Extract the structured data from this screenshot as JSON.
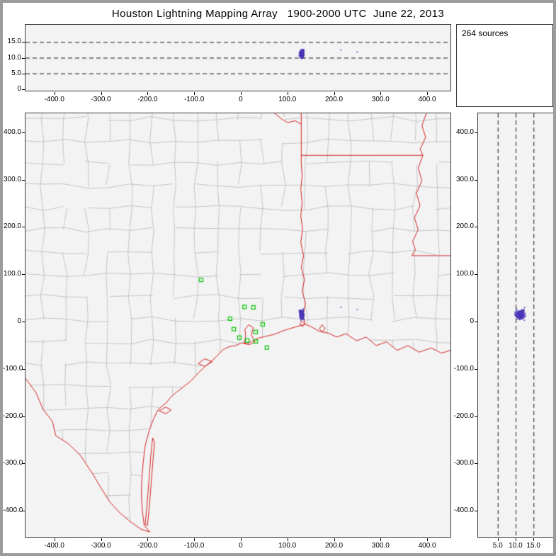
{
  "title": "Houston Lightning Mapping Array   1900-2000 UTC  June 22, 2013",
  "sources_panel": {
    "label": "264 sources"
  },
  "chart_data": {
    "type": "scatter",
    "description": "Lightning Mapping Array display: altitude vs east-west distance (top), plan-view map with county and state borders (center), altitude vs north-south distance (right)",
    "sources_total": 264,
    "source_cluster": {
      "count": 262,
      "x_east_km": {
        "center": 131,
        "spread": 7
      },
      "y_north_km": {
        "center": 15,
        "spread": 14
      },
      "alt_km": {
        "center": 11.3,
        "spread": 1.9,
        "min": 9.2,
        "max": 13.5
      }
    },
    "stray_sources": [
      {
        "x": 215,
        "y": 30,
        "alt": 12.5
      },
      {
        "x": 250,
        "y": 25,
        "alt": 11.8
      }
    ],
    "stations_xy_km": [
      [
        -85,
        88
      ],
      [
        8,
        31
      ],
      [
        27,
        30
      ],
      [
        -23,
        6
      ],
      [
        47,
        -6
      ],
      [
        -15,
        -16
      ],
      [
        32,
        -22
      ],
      [
        -3,
        -34
      ],
      [
        14,
        -40
      ],
      [
        32,
        -42
      ],
      [
        56,
        -55
      ]
    ],
    "panels": {
      "top": {
        "x_ticks": [
          "-400.0",
          "-300.0",
          "-200.0",
          "-100.0",
          "0",
          "100.0",
          "200.0",
          "300.0",
          "400.0"
        ],
        "y_ticks": [
          "15.0",
          "10.0",
          "5.0",
          "0"
        ],
        "xlim": [
          -462,
          450
        ],
        "alt_lim_km": [
          -0.5,
          20.5
        ],
        "dashed_alt_km": [
          5,
          10,
          15
        ]
      },
      "map": {
        "x_ticks": [
          "-400.0",
          "-300.0",
          "-200.0",
          "-100.0",
          "0",
          "100.0",
          "200.0",
          "300.0",
          "400.0"
        ],
        "y_ticks": [
          "400.0",
          "300.0",
          "200.0",
          "100.0",
          "0",
          "-100.0",
          "-200.0",
          "-300.0",
          "-400.0"
        ],
        "xlim": [
          -462,
          450
        ],
        "ylim": [
          440,
          -455
        ]
      },
      "right": {
        "x_ticks": [
          "5.0",
          "10.0",
          "15.0"
        ],
        "y_ticks": [
          "400.0",
          "300.0",
          "200.0",
          "100.0",
          "0",
          "-100.0",
          "-200.0",
          "-300.0",
          "-400.0"
        ],
        "alt_lim_km": [
          -0.5,
          20.5
        ],
        "dashed_alt_km": [
          5,
          10,
          15
        ]
      }
    },
    "county_mesh": {
      "spacing_km": 47,
      "jitter_km": 11,
      "skip_prob": 0.16,
      "seed": 42
    },
    "map_layers": {
      "panel_bg": "#f3f3f3",
      "dash_color": "#1a1a1a",
      "county_color": "#b2b2b2",
      "state_border_color": "#d42222",
      "station_color": "#00c800",
      "source_colors": [
        "#3b3bb4",
        "#5a2fb4",
        "#2c49c8",
        "#7a3cc8",
        "#4632a0"
      ],
      "borders": {
        "rio_grande": [
          [
            -462,
            -120
          ],
          [
            -440,
            -150
          ],
          [
            -425,
            -185
          ],
          [
            -405,
            -210
          ],
          [
            -398,
            -240
          ],
          [
            -370,
            -258
          ],
          [
            -345,
            -282
          ],
          [
            -318,
            -322
          ],
          [
            -300,
            -352
          ],
          [
            -282,
            -380
          ],
          [
            -262,
            -402
          ],
          [
            -238,
            -422
          ],
          [
            -215,
            -438
          ],
          [
            -196,
            -444
          ]
        ],
        "coastline": [
          [
            -196,
            -444
          ],
          [
            -208,
            -430
          ],
          [
            -212,
            -400
          ],
          [
            -214,
            -365
          ],
          [
            -213,
            -330
          ],
          [
            -210,
            -295
          ],
          [
            -206,
            -262
          ],
          [
            -198,
            -232
          ],
          [
            -188,
            -205
          ],
          [
            -178,
            -185
          ],
          [
            -160,
            -170
          ],
          [
            -150,
            -158
          ],
          [
            -138,
            -148
          ],
          [
            -125,
            -138
          ],
          [
            -108,
            -125
          ],
          [
            -92,
            -108
          ],
          [
            -75,
            -92
          ],
          [
            -60,
            -80
          ],
          [
            -48,
            -68
          ],
          [
            -38,
            -58
          ],
          [
            -25,
            -52
          ],
          [
            -12,
            -50
          ],
          [
            2,
            -44
          ],
          [
            14,
            -46
          ],
          [
            24,
            -40
          ],
          [
            38,
            -34
          ],
          [
            55,
            -30
          ],
          [
            72,
            -26
          ],
          [
            92,
            -18
          ],
          [
            112,
            -12
          ],
          [
            126,
            -8
          ],
          [
            137,
            -5
          ],
          [
            150,
            -10
          ],
          [
            168,
            -20
          ],
          [
            188,
            -24
          ],
          [
            205,
            -32
          ],
          [
            225,
            -25
          ],
          [
            248,
            -40
          ],
          [
            268,
            -32
          ],
          [
            290,
            -50
          ],
          [
            312,
            -42
          ],
          [
            335,
            -60
          ],
          [
            358,
            -50
          ],
          [
            382,
            -64
          ],
          [
            408,
            -55
          ],
          [
            430,
            -66
          ],
          [
            450,
            -60
          ]
        ],
        "tx_la_ar_border": [
          [
            137,
            -5
          ],
          [
            133,
            15
          ],
          [
            138,
            40
          ],
          [
            131,
            65
          ],
          [
            136,
            90
          ],
          [
            129,
            115
          ],
          [
            134,
            140
          ],
          [
            128,
            168
          ],
          [
            132,
            196
          ],
          [
            128,
            224
          ],
          [
            131,
            252
          ],
          [
            128,
            280
          ],
          [
            131,
            308
          ],
          [
            129,
            335
          ],
          [
            129,
            442
          ]
        ],
        "la_ar_border": [
          [
            129,
            352
          ],
          [
            390,
            352
          ]
        ],
        "mississippi_river": [
          [
            398,
            442
          ],
          [
            388,
            415
          ],
          [
            396,
            390
          ],
          [
            384,
            365
          ],
          [
            390,
            352
          ],
          [
            380,
            325
          ],
          [
            388,
            298
          ],
          [
            376,
            272
          ],
          [
            384,
            246
          ],
          [
            372,
            220
          ],
          [
            380,
            195
          ],
          [
            368,
            170
          ],
          [
            374,
            152
          ],
          [
            366,
            140
          ]
        ],
        "la_ms_border": [
          [
            366,
            140
          ],
          [
            462,
            140
          ]
        ],
        "red_river_stub": [
          [
            129,
            418
          ],
          [
            115,
            425
          ],
          [
            100,
            421
          ],
          [
            88,
            428
          ],
          [
            78,
            436
          ],
          [
            70,
            442
          ]
        ]
      },
      "bays": [
        [
          [
            -176,
            -188
          ],
          [
            -162,
            -180
          ],
          [
            -150,
            -186
          ],
          [
            -162,
            -194
          ],
          [
            -176,
            -188
          ]
        ],
        [
          [
            -92,
            -88
          ],
          [
            -78,
            -78
          ],
          [
            -62,
            -84
          ],
          [
            -78,
            -94
          ],
          [
            -92,
            -88
          ]
        ],
        [
          [
            6,
            -46
          ],
          [
            10,
            -30
          ],
          [
            8,
            -16
          ],
          [
            16,
            -6
          ],
          [
            26,
            -12
          ],
          [
            22,
            -28
          ],
          [
            30,
            -42
          ],
          [
            18,
            -48
          ],
          [
            6,
            -46
          ]
        ],
        [
          [
            126,
            -4
          ],
          [
            131,
            2
          ],
          [
            137,
            -4
          ],
          [
            131,
            -10
          ],
          [
            126,
            -4
          ]
        ],
        [
          [
            168,
            -14
          ],
          [
            174,
            -6
          ],
          [
            180,
            -14
          ],
          [
            174,
            -22
          ],
          [
            168,
            -14
          ]
        ]
      ],
      "islands": [
        [
          [
            -190,
            -245
          ],
          [
            -194,
            -285
          ],
          [
            -197,
            -325
          ],
          [
            -200,
            -362
          ],
          [
            -203,
            -398
          ],
          [
            -206,
            -428
          ],
          [
            -201,
            -430
          ],
          [
            -198,
            -400
          ],
          [
            -195,
            -365
          ],
          [
            -192,
            -328
          ],
          [
            -189,
            -290
          ],
          [
            -186,
            -255
          ],
          [
            -190,
            -245
          ]
        ]
      ]
    }
  }
}
